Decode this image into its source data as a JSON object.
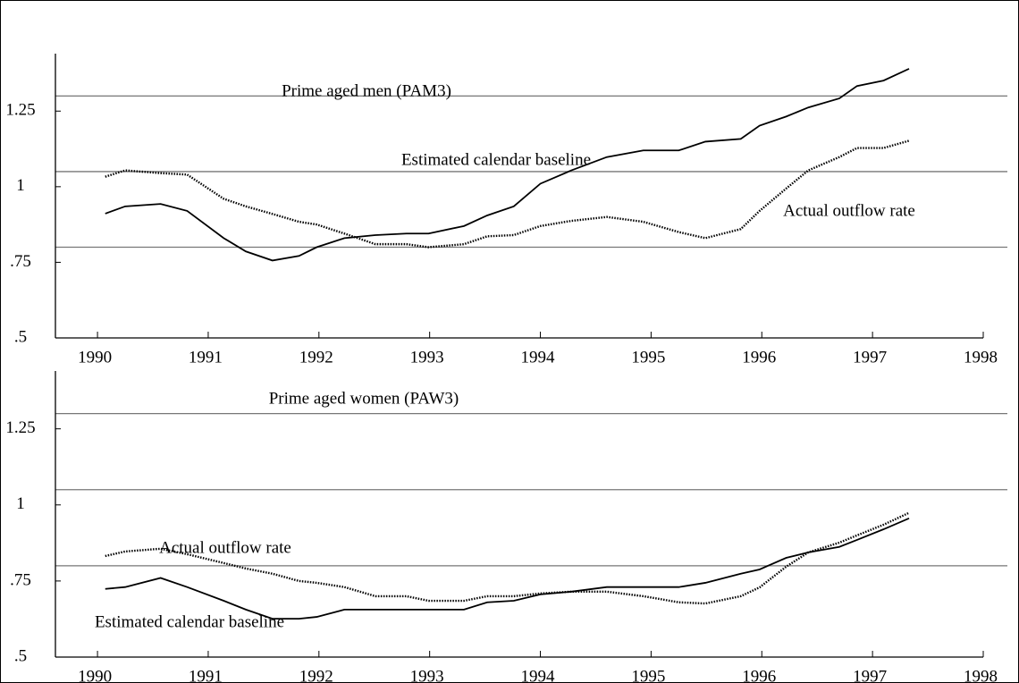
{
  "chart_data": [
    {
      "type": "line",
      "title": "Prime aged men (PAM3)",
      "x": [
        1990.07,
        1990.25,
        1990.57,
        1990.81,
        1991.14,
        1991.34,
        1991.58,
        1991.82,
        1991.98,
        1992.23,
        1992.51,
        1992.79,
        1992.99,
        1993.31,
        1993.52,
        1993.76,
        1994.0,
        1994.28,
        1994.6,
        1994.93,
        1995.25,
        1995.49,
        1995.81,
        1995.98,
        1996.22,
        1996.42,
        1996.7,
        1996.86,
        1997.1,
        1997.33
      ],
      "series": [
        {
          "name": "Estimated calendar baseline",
          "color": "#000000",
          "dash": false,
          "values": [
            0.911,
            0.935,
            0.943,
            0.92,
            0.83,
            0.786,
            0.756,
            0.771,
            0.8,
            0.83,
            0.84,
            0.845,
            0.845,
            0.87,
            0.905,
            0.935,
            1.01,
            1.054,
            1.098,
            1.12,
            1.12,
            1.149,
            1.158,
            1.202,
            1.232,
            1.262,
            1.292,
            1.333,
            1.351,
            1.39
          ]
        },
        {
          "name": "Actual outflow rate",
          "color": "#000000",
          "dash": true,
          "values": [
            1.033,
            1.054,
            1.045,
            1.04,
            0.96,
            0.935,
            0.91,
            0.884,
            0.875,
            0.845,
            0.81,
            0.81,
            0.8,
            0.81,
            0.836,
            0.84,
            0.87,
            0.887,
            0.9,
            0.884,
            0.85,
            0.83,
            0.86,
            0.92,
            0.994,
            1.054,
            1.098,
            1.128,
            1.128,
            1.152
          ]
        }
      ],
      "reference_lines": [
        0.8,
        1.05,
        1.3
      ],
      "xlim": [
        1989.62,
        1998
      ],
      "xticks": [
        1990,
        1991,
        1992,
        1993,
        1994,
        1995,
        1996,
        1997,
        1998
      ],
      "ylim": [
        0.5,
        1.44
      ],
      "yticks": [
        {
          "value": 0.5,
          "label": ".5"
        },
        {
          "value": 0.75,
          "label": ".75"
        },
        1,
        {
          "value": 1.25,
          "label": "1.25"
        }
      ]
    },
    {
      "type": "line",
      "title": "Prime aged women (PAW3)",
      "x": [
        1990.07,
        1990.25,
        1990.57,
        1990.81,
        1991.14,
        1991.34,
        1991.58,
        1991.82,
        1991.98,
        1992.23,
        1992.51,
        1992.79,
        1992.99,
        1993.31,
        1993.52,
        1993.76,
        1994.0,
        1994.28,
        1994.6,
        1994.93,
        1995.25,
        1995.49,
        1995.81,
        1995.98,
        1996.22,
        1996.42,
        1996.7,
        1996.86,
        1997.1,
        1997.33
      ],
      "series": [
        {
          "name": "Estimated calendar baseline",
          "color": "#000000",
          "dash": false,
          "values": [
            0.724,
            0.73,
            0.76,
            0.73,
            0.685,
            0.656,
            0.626,
            0.626,
            0.632,
            0.656,
            0.656,
            0.656,
            0.656,
            0.656,
            0.68,
            0.685,
            0.706,
            0.715,
            0.73,
            0.73,
            0.73,
            0.744,
            0.774,
            0.788,
            0.826,
            0.844,
            0.862,
            0.885,
            0.92,
            0.956
          ]
        },
        {
          "name": "Actual outflow rate",
          "color": "#000000",
          "dash": true,
          "values": [
            0.832,
            0.847,
            0.856,
            0.838,
            0.809,
            0.791,
            0.774,
            0.75,
            0.744,
            0.73,
            0.7,
            0.7,
            0.685,
            0.685,
            0.7,
            0.7,
            0.709,
            0.715,
            0.715,
            0.7,
            0.68,
            0.676,
            0.7,
            0.729,
            0.797,
            0.844,
            0.876,
            0.9,
            0.935,
            0.974
          ]
        }
      ],
      "reference_lines": [
        0.8,
        1.05,
        1.3
      ],
      "xlim": [
        1989.62,
        1998
      ],
      "xticks": [
        1990,
        1991,
        1992,
        1993,
        1994,
        1995,
        1996,
        1997,
        1998
      ],
      "ylim": [
        0.5,
        1.44
      ],
      "yticks": [
        {
          "value": 0.5,
          "label": ".5"
        },
        {
          "value": 0.75,
          "label": ".75"
        },
        1,
        {
          "value": 1.25,
          "label": "1.25"
        }
      ]
    }
  ]
}
